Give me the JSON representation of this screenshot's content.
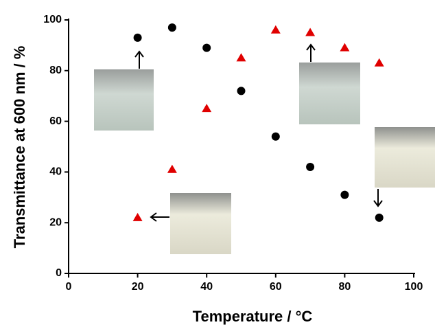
{
  "chart_data": {
    "type": "scatter",
    "x_label": "Temperature / °C",
    "y_label": "Transmittance at 600 nm / %",
    "x": [
      20,
      30,
      40,
      50,
      60,
      70,
      80,
      90
    ],
    "series": [
      {
        "color": "#000000",
        "marker": "circle",
        "values": [
          93,
          97,
          89,
          72,
          54,
          42,
          31,
          22
        ]
      },
      {
        "color": "#e00000",
        "marker": "triangle",
        "values": [
          22,
          41,
          65,
          85,
          96,
          95,
          89,
          83
        ]
      }
    ],
    "xlim": [
      0,
      100
    ],
    "xticks": [
      0,
      20,
      40,
      60,
      80,
      100
    ],
    "ylim": [
      0,
      100
    ],
    "yticks": [
      0,
      20,
      40,
      60,
      80,
      100
    ]
  }
}
